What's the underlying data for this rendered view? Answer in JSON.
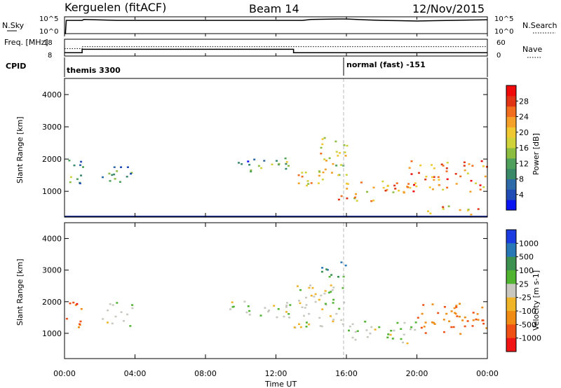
{
  "header": {
    "radar": "Kerguelen (fitACF)",
    "beam": "Beam 14",
    "date": "12/Nov/2015"
  },
  "time_axis": {
    "ticks": [
      "00:00",
      "04:00",
      "08:00",
      "12:00",
      "16:00",
      "20:00",
      "00:00"
    ],
    "label": "Time UT",
    "range_hours": [
      0,
      24
    ]
  },
  "chart_data": [
    {
      "type": "line",
      "panel": "noise",
      "left_label": "N.Sky",
      "right_label": "N.Search",
      "left_ticks": [
        "10^5",
        "10^0"
      ],
      "right_ticks": [
        "10^5",
        "10^0"
      ],
      "series": [
        {
          "style": "solid",
          "x": [
            0,
            0.05,
            0.1,
            1.0,
            1.1,
            3,
            6,
            9,
            12,
            13.5,
            14,
            15.5,
            16,
            17,
            18,
            19,
            20,
            21,
            22,
            23,
            24
          ],
          "y": [
            0.0,
            0.0,
            0.86,
            0.86,
            0.92,
            0.86,
            0.86,
            0.86,
            0.86,
            0.86,
            0.92,
            0.95,
            0.95,
            0.9,
            0.86,
            0.84,
            0.82,
            0.84,
            0.86,
            0.88,
            0.9
          ]
        }
      ]
    },
    {
      "type": "line",
      "panel": "frequency",
      "left_label": "Freq. [MHz]",
      "right_label": "Nave",
      "left_ticks": [
        "18",
        "8"
      ],
      "right_ticks": [
        "60",
        "0"
      ],
      "series": [
        {
          "style": "solid",
          "x": [
            0,
            1,
            1,
            13,
            13,
            24
          ],
          "y": [
            10,
            10,
            12,
            12,
            10,
            10
          ]
        },
        {
          "style": "dotted",
          "x": [
            0,
            1,
            1,
            24
          ],
          "y": [
            12.4,
            12.4,
            13.6,
            13.6
          ]
        }
      ]
    },
    {
      "type": "table",
      "panel": "cpid",
      "label": "CPID",
      "segments": [
        {
          "start": 0,
          "text": "themis 3300"
        },
        {
          "start": 16,
          "text": "normal (fast) -151"
        }
      ]
    },
    {
      "type": "heatmap",
      "panel": "power",
      "ylabel": "Slant Range [km]",
      "yticks": [
        1000,
        2000,
        3000,
        4000
      ],
      "ylim": [
        200,
        4500
      ],
      "colorbar": {
        "label": "Power [dB]",
        "ticks": [
          "4",
          "8",
          "12",
          "16",
          "20",
          "24",
          "28"
        ],
        "colors": [
          "#0a14f0",
          "#1f4bb4",
          "#2f6aa8",
          "#3a8a6a",
          "#4ea05a",
          "#8cbc40",
          "#cfd238",
          "#f0c832",
          "#f5a028",
          "#f06e1e",
          "#e03414",
          "#f00a0a"
        ]
      },
      "blobs": [
        {
          "t": [
            0.05,
            1.0
          ],
          "r": [
            1100,
            2100
          ],
          "level": 0.3
        },
        {
          "t": [
            2.1,
            3.8
          ],
          "r": [
            1250,
            2000
          ],
          "level": 0.3
        },
        {
          "t": [
            9.0,
            10.5
          ],
          "r": [
            1800,
            2050
          ],
          "level": 0.25
        },
        {
          "t": [
            10.5,
            13.0
          ],
          "r": [
            1500,
            2050
          ],
          "level": 0.35
        },
        {
          "t": [
            13.0,
            15.0
          ],
          "r": [
            1200,
            1800
          ],
          "level": 0.6
        },
        {
          "t": [
            14.0,
            16.0
          ],
          "r": [
            1500,
            2700
          ],
          "level": 0.55
        },
        {
          "t": [
            15.5,
            19.5
          ],
          "r": [
            700,
            1400
          ],
          "level": 0.7
        },
        {
          "t": [
            19.5,
            24.0
          ],
          "r": [
            1000,
            2000
          ],
          "level": 0.8
        },
        {
          "t": [
            20.5,
            23.5
          ],
          "r": [
            300,
            600
          ],
          "level": 0.7
        }
      ]
    },
    {
      "type": "heatmap",
      "panel": "velocity",
      "ylabel": "Slant Range [km]",
      "yticks": [
        1000,
        2000,
        3000,
        4000
      ],
      "ylim": [
        200,
        4500
      ],
      "colorbar": {
        "label": "Velocity [m s-1]",
        "ticks": [
          "1000",
          "500",
          "100",
          "25",
          "-25",
          "-100",
          "-500",
          "-1000"
        ],
        "colors": [
          "#1a3ce0",
          "#2878b8",
          "#3c9050",
          "#50b430",
          "#c8c8c0",
          "#f0b428",
          "#f08c14",
          "#f05014",
          "#f01414"
        ]
      },
      "blobs": [
        {
          "t": [
            0.05,
            1.0
          ],
          "r": [
            1200,
            2100
          ],
          "level": -0.7
        },
        {
          "t": [
            2.1,
            3.8
          ],
          "r": [
            1250,
            2000
          ],
          "level": 0.0
        },
        {
          "t": [
            9.0,
            13.0
          ],
          "r": [
            1500,
            2050
          ],
          "level": 0.0
        },
        {
          "t": [
            13.0,
            16.0
          ],
          "r": [
            1200,
            2700
          ],
          "level": 0.0
        },
        {
          "t": [
            14.5,
            16.0
          ],
          "r": [
            2700,
            3300
          ],
          "level": 0.5
        },
        {
          "t": [
            16.0,
            20.0
          ],
          "r": [
            700,
            1400
          ],
          "level": 0.1
        },
        {
          "t": [
            20.0,
            24.0
          ],
          "r": [
            1000,
            2000
          ],
          "level": -0.6
        }
      ]
    }
  ]
}
